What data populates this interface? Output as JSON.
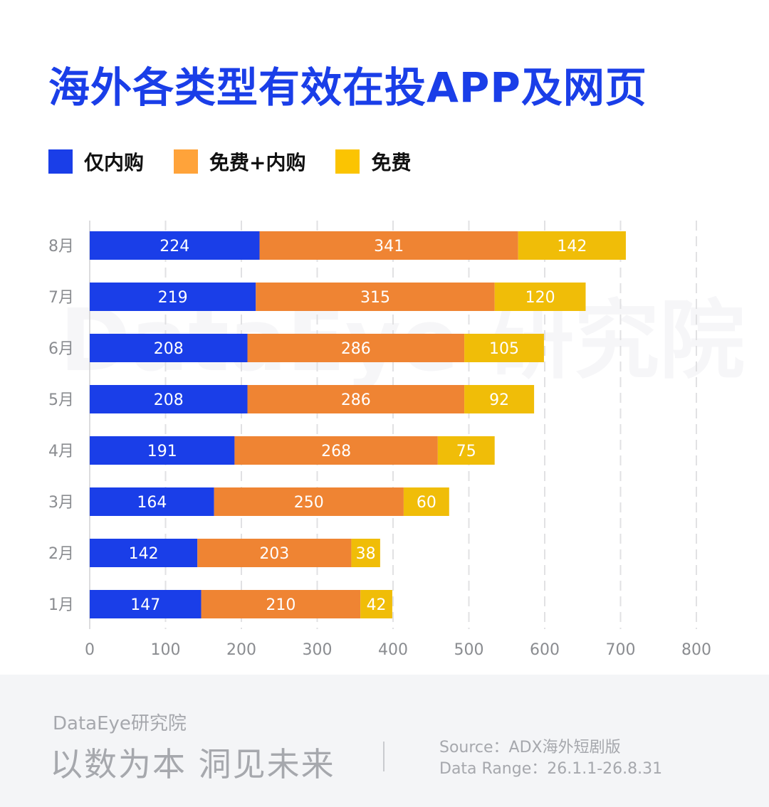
{
  "title": "海外各类型有效在投APP及网页",
  "legend": [
    {
      "label": "仅内购",
      "color": "#1a3ee8"
    },
    {
      "label": "免费+内购",
      "color": "#ffa33a"
    },
    {
      "label": "免费",
      "color": "#fbc402"
    }
  ],
  "chart_data": {
    "type": "bar",
    "orientation": "horizontal",
    "stacked": true,
    "categories": [
      "8月",
      "7月",
      "6月",
      "5月",
      "4月",
      "3月",
      "2月",
      "1月"
    ],
    "series": [
      {
        "name": "仅内购",
        "color": "#1a3ee8",
        "values": [
          224,
          219,
          208,
          208,
          191,
          164,
          142,
          147
        ]
      },
      {
        "name": "免费+内购",
        "color": "#ef8433",
        "values": [
          341,
          315,
          286,
          286,
          268,
          250,
          203,
          210
        ]
      },
      {
        "name": "免费",
        "color": "#f0bd08",
        "values": [
          142,
          120,
          105,
          92,
          75,
          60,
          38,
          42
        ]
      }
    ],
    "xlim": [
      0,
      800
    ],
    "xticks": [
      0,
      100,
      200,
      300,
      400,
      500,
      600,
      700,
      800
    ],
    "grid": "vertical-dashed",
    "data_labels": true,
    "legend": "top-left"
  },
  "watermark": "DataEye 研究院",
  "footer": {
    "brand": "DataEye研究院",
    "slogan": "以数为本 洞见未来",
    "source": "Source：ADX海外短剧版",
    "range": "Data Range：26.1.1-26.8.31"
  }
}
